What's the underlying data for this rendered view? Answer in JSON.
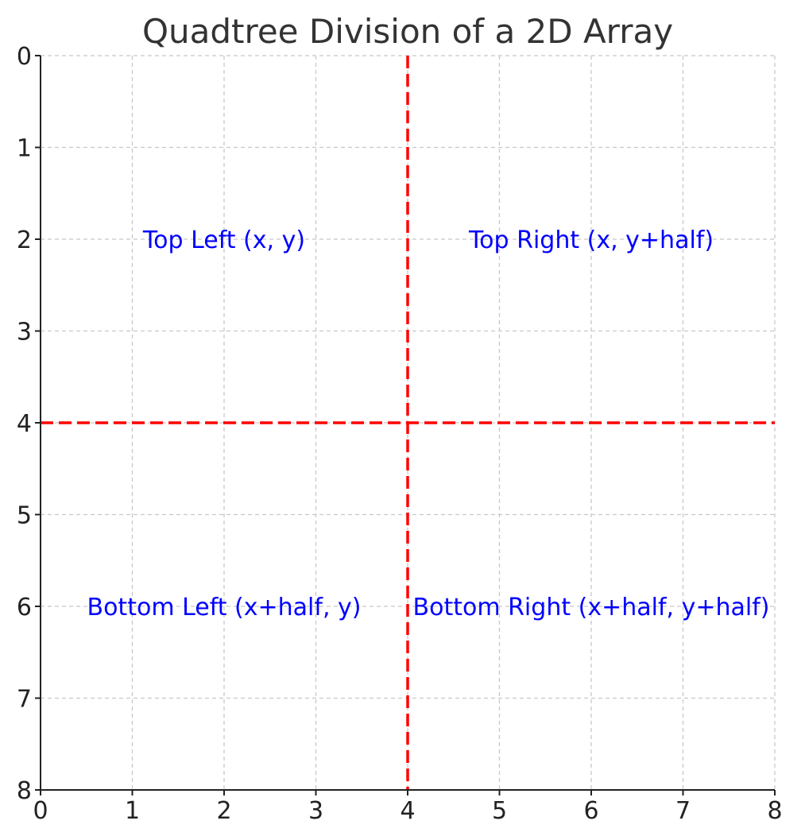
{
  "chart_data": {
    "type": "line",
    "title": "Quadtree Division of a 2D Array",
    "xlabel": "",
    "ylabel": "",
    "xlim": [
      0,
      8
    ],
    "ylim": [
      0,
      8
    ],
    "y_inverted": true,
    "x_ticks": [
      "0",
      "1",
      "2",
      "3",
      "4",
      "5",
      "6",
      "7",
      "8"
    ],
    "y_ticks": [
      "0",
      "1",
      "2",
      "3",
      "4",
      "5",
      "6",
      "7",
      "8"
    ],
    "grid": true,
    "divider_color": "#ff0000",
    "annotation_color": "#0000ff",
    "dividers": [
      {
        "orientation": "vertical",
        "x": 4
      },
      {
        "orientation": "horizontal",
        "y": 4
      }
    ],
    "annotations": [
      {
        "text": "Top Left (x, y)",
        "x": 2,
        "y": 2
      },
      {
        "text": "Top Right (x, y+half)",
        "x": 6,
        "y": 2
      },
      {
        "text": "Bottom Left (x+half, y)",
        "x": 2,
        "y": 6
      },
      {
        "text": "Bottom Right (x+half, y+half)",
        "x": 6,
        "y": 6
      }
    ]
  }
}
